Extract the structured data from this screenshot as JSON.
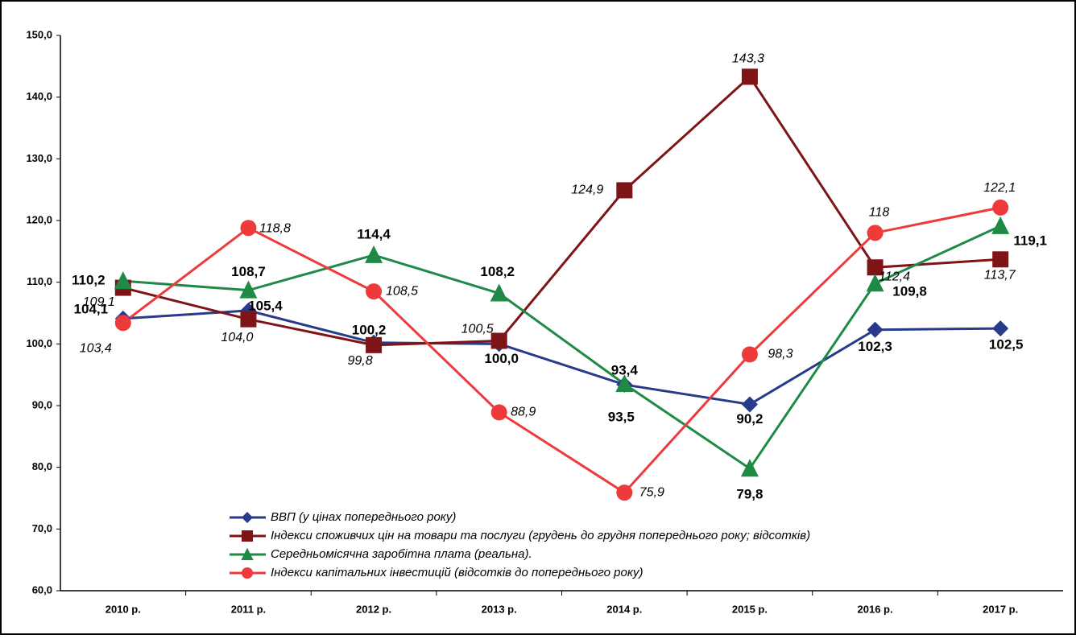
{
  "chart_data": {
    "type": "line",
    "categories": [
      "2010 р.",
      "2011 р.",
      "2012 р.",
      "2013 р.",
      "2014 р.",
      "2015 р.",
      "2016 р.",
      "2017 р."
    ],
    "series": [
      {
        "name": "ВВП (у цінах попереднього року)",
        "color": "#283a8a",
        "marker": "diamond",
        "values": [
          104.1,
          105.4,
          100.2,
          100.0,
          93.4,
          90.2,
          102.3,
          102.5
        ],
        "value_labels": [
          "104,1",
          "105,4",
          "100,2",
          "100,0",
          "93,4",
          "90,2",
          "102,3",
          "102,5"
        ]
      },
      {
        "name": "Індекси споживчих цін на товари та послуги (грудень до грудня попереднього року; відсотків)",
        "color": "#7f1416",
        "marker": "square",
        "values": [
          109.1,
          104.0,
          99.8,
          100.5,
          124.9,
          143.3,
          112.4,
          113.7
        ],
        "value_labels": [
          "109,1",
          "104,0",
          "99,8",
          "100,5",
          "124,9",
          "143,3",
          "112,4",
          "113,7"
        ]
      },
      {
        "name": "Середньомісячна заробітна плата (реальна).",
        "color": "#1e8a45",
        "marker": "triangle",
        "values": [
          110.2,
          108.7,
          114.4,
          108.2,
          93.5,
          79.8,
          109.8,
          119.1
        ],
        "value_labels": [
          "110,2",
          "108,7",
          "114,4",
          "108,2",
          "93,5",
          "79,8",
          "109,8",
          "119,1"
        ]
      },
      {
        "name": "Індекси капітальних інвестицій (відсотків до попереднього року)",
        "color": "#ee3a3a",
        "marker": "circle",
        "values": [
          103.4,
          118.8,
          108.5,
          88.9,
          75.9,
          98.3,
          118,
          122.1
        ],
        "value_labels": [
          "103,4",
          "118,8",
          "108,5",
          "88,9",
          "75,9",
          "98,3",
          "118",
          "122,1"
        ]
      }
    ],
    "ylim": [
      60,
      150
    ],
    "yticks": [
      {
        "value": 60,
        "label": "60,0"
      },
      {
        "value": 70,
        "label": "70,0"
      },
      {
        "value": 80,
        "label": "80,0"
      },
      {
        "value": 90,
        "label": "90,0"
      },
      {
        "value": 100,
        "label": "100,0"
      },
      {
        "value": 110,
        "label": "110,0"
      },
      {
        "value": 120,
        "label": "120,0"
      },
      {
        "value": 130,
        "label": "130,0"
      },
      {
        "value": 140,
        "label": "140,0"
      },
      {
        "value": 150,
        "label": "150,0"
      }
    ],
    "grid": false
  }
}
